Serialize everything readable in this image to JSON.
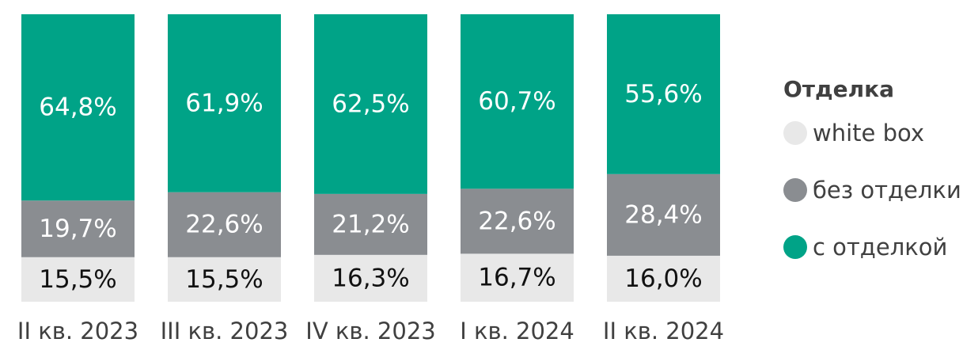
{
  "chart_data": {
    "type": "bar",
    "stacked": true,
    "normalized": true,
    "categories": [
      "II кв. 2023",
      "III кв. 2023",
      "IV кв. 2023",
      "I кв. 2024",
      "II кв. 2024"
    ],
    "series": [
      {
        "name": "white box",
        "values": [
          15.5,
          15.5,
          16.3,
          16.7,
          16.0
        ],
        "labels": [
          "15,5%",
          "15,5%",
          "16,3%",
          "16,7%",
          "16,0%"
        ],
        "color": "#e8e8e8",
        "label_color": "#111111"
      },
      {
        "name": "без отделки",
        "values": [
          19.7,
          22.6,
          21.2,
          22.6,
          28.4
        ],
        "labels": [
          "19,7%",
          "22,6%",
          "21,2%",
          "22,6%",
          "28,4%"
        ],
        "color": "#8a8d91",
        "label_color": "#ffffff"
      },
      {
        "name": "с отделкой",
        "values": [
          64.8,
          61.9,
          62.5,
          60.7,
          55.6
        ],
        "labels": [
          "64,8%",
          "61,9%",
          "62,5%",
          "60,7%",
          "55,6%"
        ],
        "color": "#00a387",
        "label_color": "#ffffff"
      }
    ],
    "ylim": [
      0,
      100
    ],
    "grid": false,
    "legend": {
      "title": "Отделка",
      "placement": "right"
    }
  }
}
